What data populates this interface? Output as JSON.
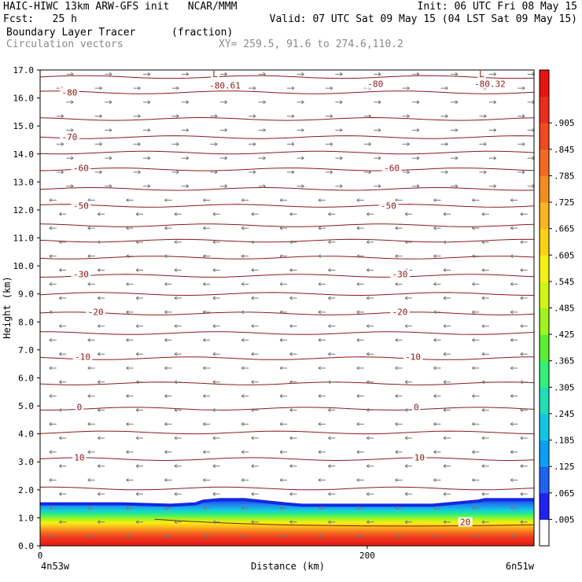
{
  "header": {
    "left_line1": "HAIC-HIWC 13km ARW-GFS init   NCAR/MMM",
    "left_line2": "Fcst:   25 h",
    "right_line1": "Init: 06 UTC Fri 08 May 15",
    "right_line2": "Valid: 07 UTC Sat 09 May 15 (04 LST Sat 09 May 15)",
    "field_name": "Boundary Layer Tracer",
    "field_units": "(fraction)",
    "vector_name": "Circulation vectors",
    "xy_range": "XY= 259.5, 91.6 to 274.6,110.2"
  },
  "chart_data": {
    "type": "heatmap",
    "title": "Boundary Layer Tracer",
    "xlabel": "Distance (km)",
    "ylabel": "Height (km)",
    "xlim": [
      0,
      302
    ],
    "ylim": [
      0,
      17
    ],
    "x_ticks": [
      0,
      200
    ],
    "x_endpoint_labels": [
      "4n53w",
      "6n51w"
    ],
    "y_ticks": [
      0.0,
      1.0,
      2.0,
      3.0,
      4.0,
      5.0,
      6.0,
      7.0,
      8.0,
      9.0,
      10.0,
      11.0,
      12.0,
      13.0,
      14.0,
      15.0,
      16.0,
      17.0
    ],
    "colorbar_labels": [
      ".005",
      ".065",
      ".125",
      ".185",
      ".245",
      ".305",
      ".365",
      ".425",
      ".485",
      ".545",
      ".605",
      ".665",
      ".725",
      ".785",
      ".845",
      ".905"
    ],
    "colorbar_colors": [
      "#ffffff",
      "#2222ee",
      "#1e64f0",
      "#0aa0f5",
      "#10c8e6",
      "#1ee0b4",
      "#32f078",
      "#5af032",
      "#a0f51e",
      "#d2f514",
      "#f5f014",
      "#fad214",
      "#fab41e",
      "#f58c1e",
      "#f56a1e",
      "#f04a1e",
      "#eb2d1e",
      "#e61414"
    ],
    "tracer_top_km": {
      "x": [
        0,
        50,
        80,
        95,
        100,
        110,
        125,
        150,
        160,
        200,
        240,
        268,
        272,
        285,
        302
      ],
      "top": [
        1.5,
        1.5,
        1.45,
        1.5,
        1.6,
        1.65,
        1.65,
        1.5,
        1.45,
        1.45,
        1.45,
        1.6,
        1.65,
        1.65,
        1.65
      ]
    },
    "isotherm_labels": [
      {
        "text": "-80",
        "x": 18,
        "y": 16.15
      },
      {
        "text": "-80",
        "x": 205,
        "y": 16.45
      },
      {
        "text": "-80.61",
        "x": 113,
        "y": 16.4
      },
      {
        "text": "-80.32",
        "x": 275,
        "y": 16.45
      },
      {
        "text": "L",
        "x": 107,
        "y": 16.8
      },
      {
        "text": "L",
        "x": 270,
        "y": 16.8
      },
      {
        "text": "-70",
        "x": 18,
        "y": 14.55
      },
      {
        "text": "-60",
        "x": 25,
        "y": 13.45
      },
      {
        "text": "-60",
        "x": 215,
        "y": 13.45
      },
      {
        "text": "-50",
        "x": 25,
        "y": 12.1
      },
      {
        "text": "-50",
        "x": 213,
        "y": 12.1
      },
      {
        "text": "-30",
        "x": 25,
        "y": 9.65
      },
      {
        "text": "-30",
        "x": 220,
        "y": 9.65
      },
      {
        "text": "-20",
        "x": 34,
        "y": 8.3
      },
      {
        "text": "-20",
        "x": 220,
        "y": 8.3
      },
      {
        "text": "-10",
        "x": 26,
        "y": 6.7
      },
      {
        "text": "-10",
        "x": 228,
        "y": 6.7
      },
      {
        "text": "0",
        "x": 24,
        "y": 4.9
      },
      {
        "text": "0",
        "x": 230,
        "y": 4.9
      },
      {
        "text": "10",
        "x": 24,
        "y": 3.1
      },
      {
        "text": "10",
        "x": 232,
        "y": 3.1
      },
      {
        "text": "20",
        "x": 260,
        "y": 0.8
      }
    ],
    "isotherm_heights_km": [
      16.75,
      16.2,
      15.25,
      14.6,
      14.05,
      13.45,
      12.75,
      12.15,
      11.45,
      10.9,
      10.3,
      9.65,
      9.0,
      8.3,
      7.6,
      6.7,
      5.8,
      4.9,
      4.05,
      3.1,
      2.05
    ]
  }
}
